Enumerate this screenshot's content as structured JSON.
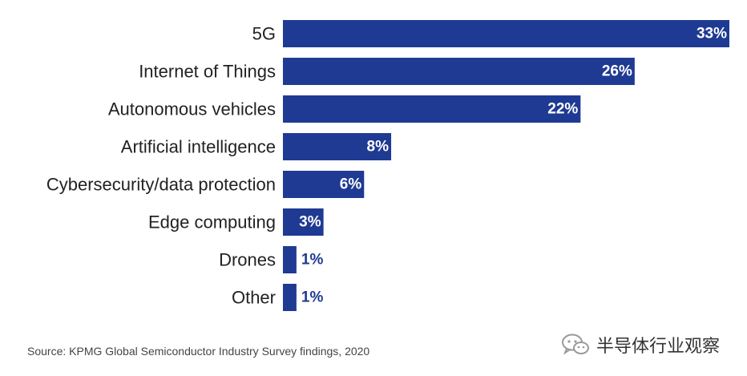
{
  "chart_data": {
    "type": "bar",
    "orientation": "horizontal",
    "categories": [
      "5G",
      "Internet of Things",
      "Autonomous vehicles",
      "Artificial intelligence",
      "Cybersecurity/data protection",
      "Edge computing",
      "Drones",
      "Other"
    ],
    "values": [
      33,
      26,
      22,
      8,
      6,
      3,
      1,
      1
    ],
    "value_labels": [
      "33%",
      "26%",
      "22%",
      "8%",
      "6%",
      "3%",
      "1%",
      "1%"
    ],
    "xlim": [
      0,
      33
    ],
    "grid": false,
    "legend": "none",
    "bar_color": "#1f3a93",
    "label_inside_color": "#ffffff",
    "label_outside_color": "#1f3a93"
  },
  "source": "Source: KPMG Global Semiconductor Industry Survey findings, 2020",
  "watermark": {
    "icon": "wechat-icon",
    "text": "半导体行业观察"
  }
}
